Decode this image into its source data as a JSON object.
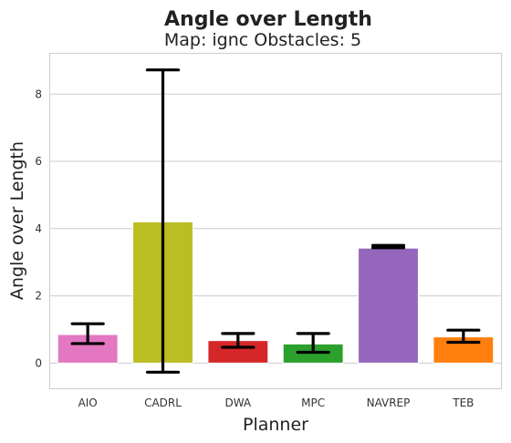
{
  "chart_data": {
    "type": "bar",
    "title": "Angle over Length",
    "subtitle": "Map: ignc Obstacles: 5",
    "xlabel": "Planner",
    "ylabel": "Angle over Length",
    "categories": [
      "AIO",
      "CADRL",
      "DWA",
      "MPC",
      "NAVREP",
      "TEB"
    ],
    "values": [
      0.85,
      4.2,
      0.67,
      0.57,
      3.42,
      0.78
    ],
    "error_low": [
      0.58,
      -0.27,
      0.47,
      0.32,
      3.43,
      0.62
    ],
    "error_high": [
      1.17,
      8.72,
      0.88,
      0.88,
      3.5,
      0.98
    ],
    "colors": [
      "#e377c2",
      "#bcbd22",
      "#d62728",
      "#2ca02c",
      "#9467bd",
      "#ff7f0e"
    ],
    "ylim": [
      -0.75,
      9.2
    ],
    "yticks": [
      0,
      2,
      4,
      6,
      8
    ],
    "grid": "y"
  }
}
